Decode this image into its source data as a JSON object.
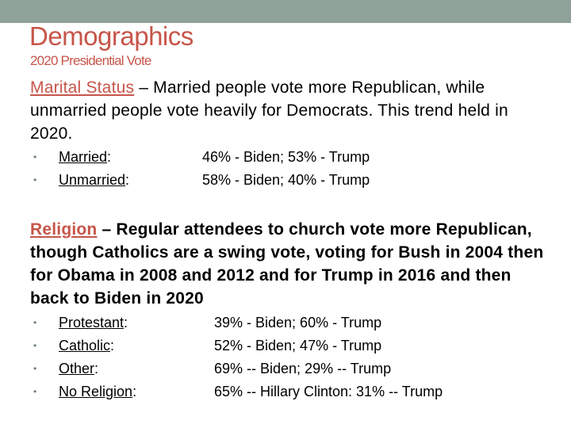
{
  "title": "Demographics",
  "subtitle": "2020 Presidential Vote",
  "colors": {
    "accent": "#c7554a",
    "top_bar": "#8fa299"
  },
  "marital": {
    "topic": "Marital Status",
    "text": " – Married people vote more Republican, while unmarried people vote heavily for Democrats. This trend held in 2020.",
    "items": [
      {
        "label": "Married",
        "value": "46% - Biden; 53% - Trump"
      },
      {
        "label": "Unmarried",
        "value": "58% - Biden; 40% - Trump"
      }
    ]
  },
  "religion": {
    "topic": "Religion",
    "text": " – Regular attendees to church vote more Republican, though Catholics are a swing vote, voting for Bush in 2004 then for Obama in 2008 and 2012 and for Trump in 2016 and then back to Biden in 2020",
    "items": [
      {
        "label": "Protestant",
        "value": "39% - Biden; 60% - Trump"
      },
      {
        "label": "Catholic",
        "value": "52% - Biden; 47% - Trump"
      },
      {
        "label": "Other",
        "value": "69% -- Biden; 29% -- Trump"
      },
      {
        "label": "No Religion",
        "value": "65% -- Hillary Clinton: 31% -- Trump"
      }
    ]
  }
}
